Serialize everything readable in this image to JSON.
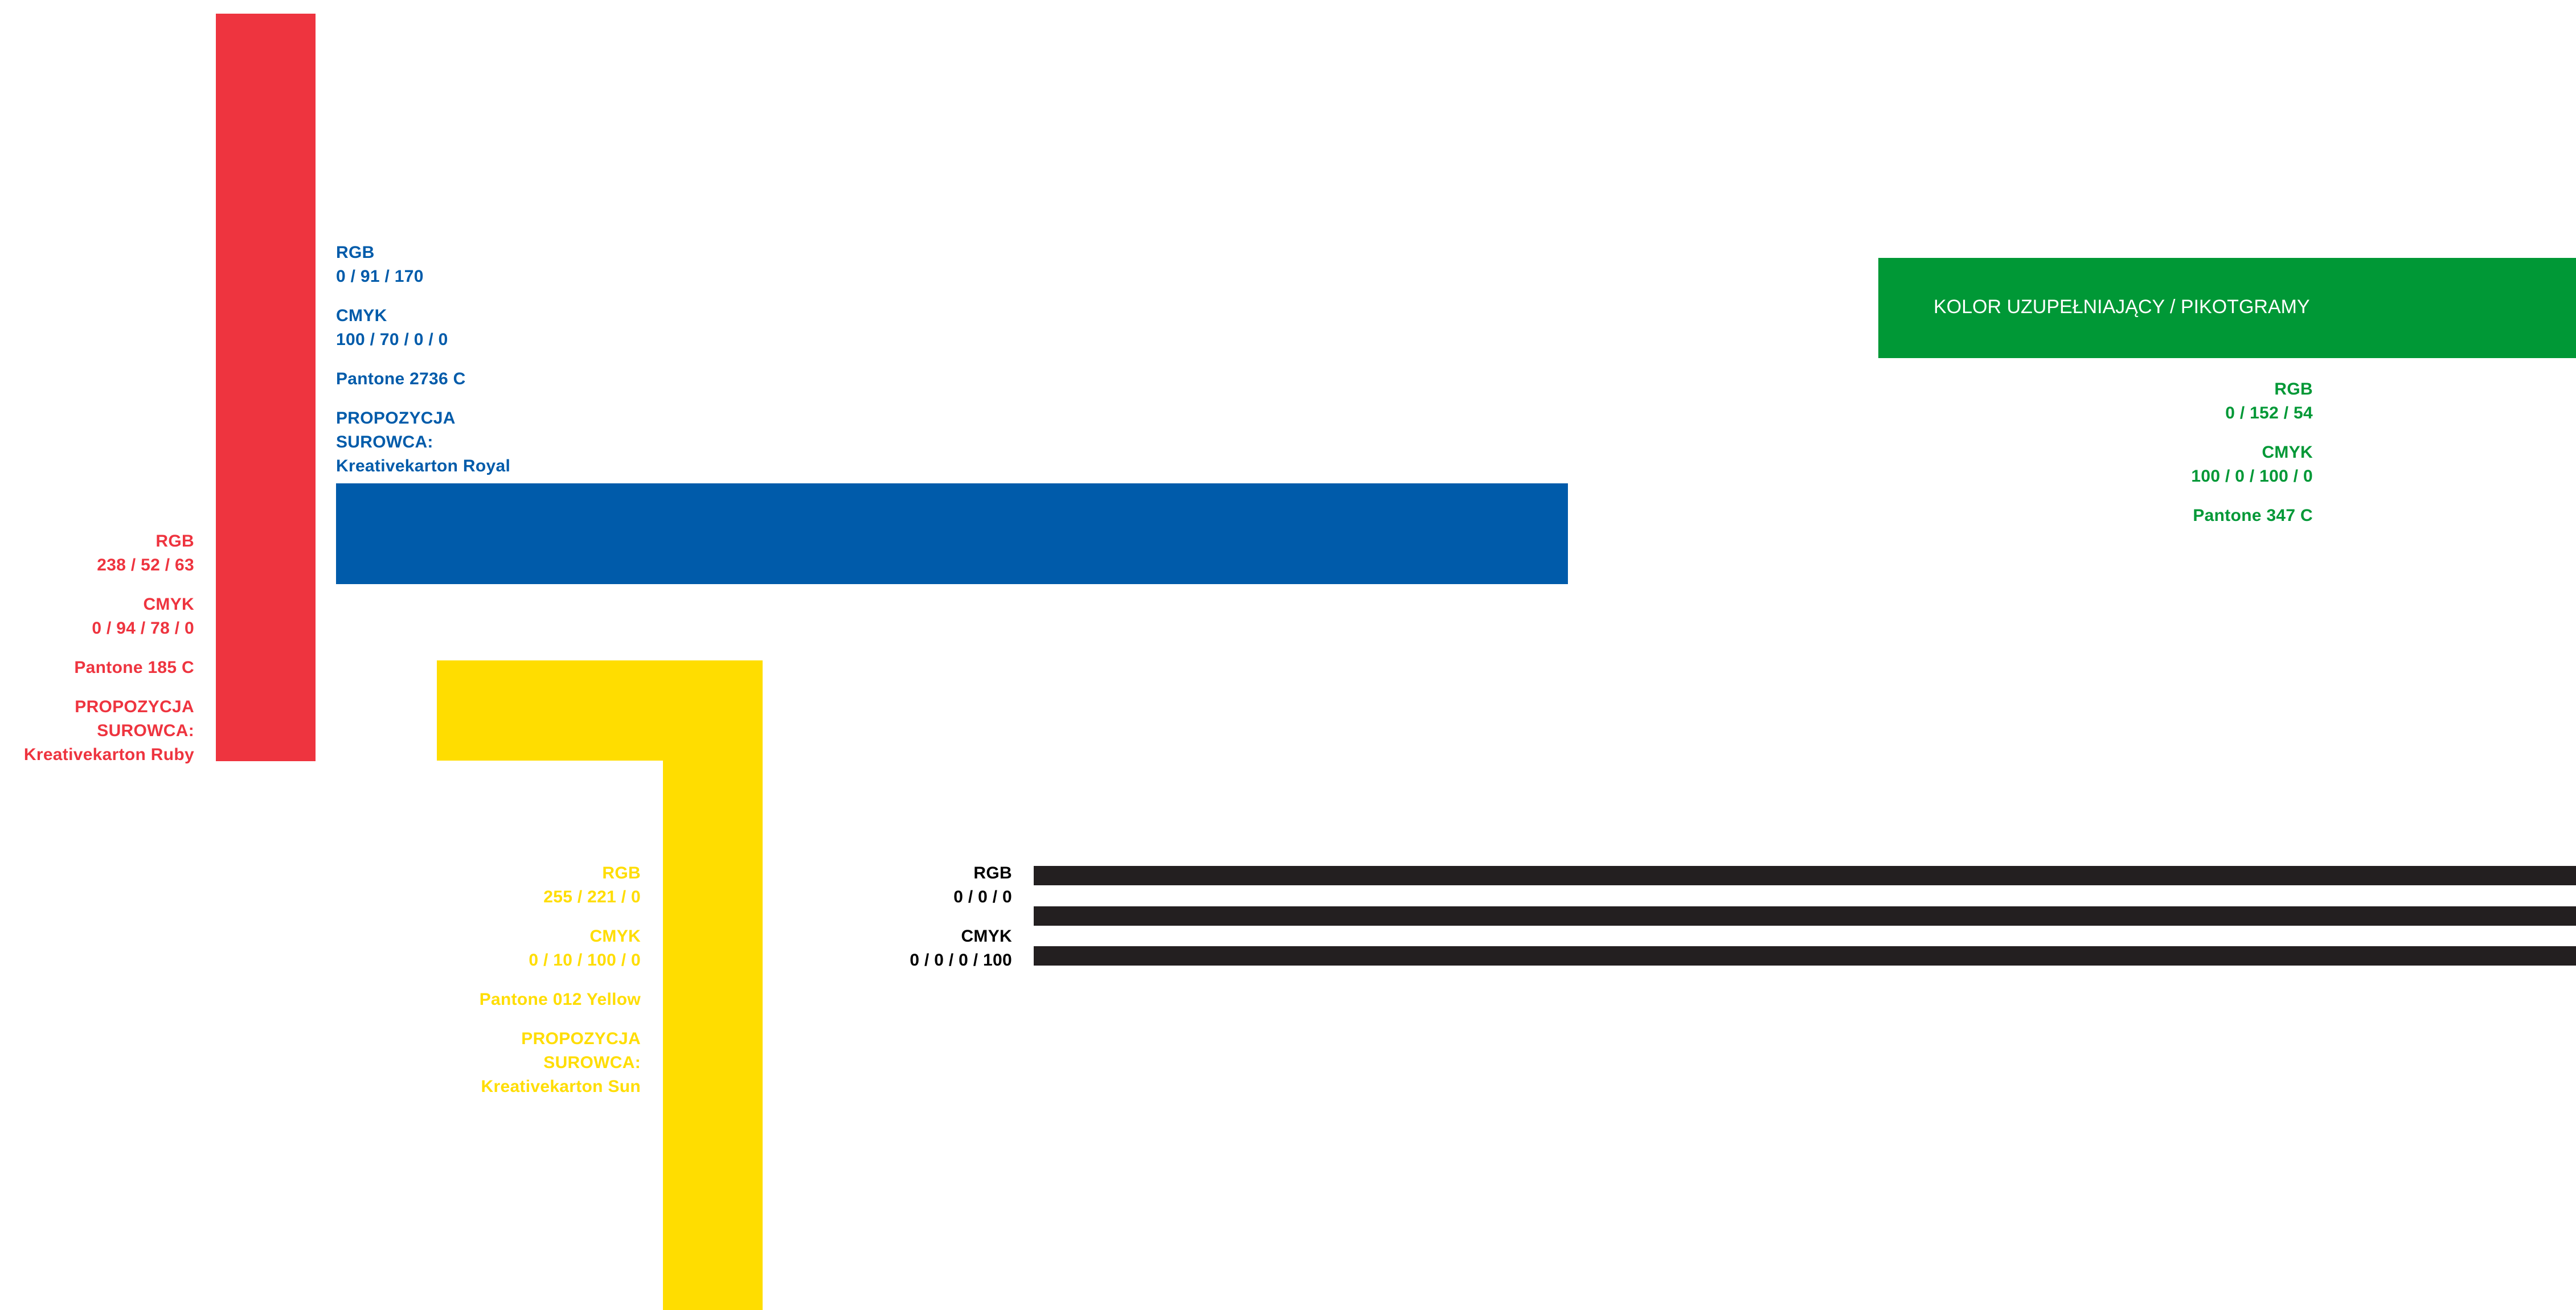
{
  "colors": {
    "red": "#ee343f",
    "blue": "#005baa",
    "yellow": "#ffdd00",
    "black": "#000000",
    "green": "#009836",
    "black_bar": "#231f20"
  },
  "red": {
    "rgb_label": "RGB",
    "rgb_value": "238 / 52 / 63",
    "cmyk_label": "CMYK",
    "cmyk_value": "0 / 94 / 78 / 0",
    "pantone": "Pantone 185 C",
    "proposal_line1": "PROPOZYCJA",
    "proposal_line2": "SUROWCA:",
    "material": "Kreativekarton Ruby"
  },
  "blue": {
    "rgb_label": "RGB",
    "rgb_value": "0 / 91 / 170",
    "cmyk_label": "CMYK",
    "cmyk_value": "100 / 70 / 0 / 0",
    "pantone": "Pantone 2736 C",
    "proposal_line1": "PROPOZYCJA",
    "proposal_line2": "SUROWCA:",
    "material": "Kreativekarton Royal"
  },
  "yellow": {
    "rgb_label": "RGB",
    "rgb_value": "255 / 221 / 0",
    "cmyk_label": "CMYK",
    "cmyk_value": "0 / 10 / 100 / 0",
    "pantone": "Pantone 012 Yellow",
    "proposal_line1": "PROPOZYCJA",
    "proposal_line2": "SUROWCA:",
    "material": "Kreativekarton Sun"
  },
  "black": {
    "rgb_label": "RGB",
    "rgb_value": "0 / 0 / 0",
    "cmyk_label": "CMYK",
    "cmyk_value": "0 / 0 / 0 / 100"
  },
  "green": {
    "title": "KOLOR UZUPEŁNIAJĄCY / PIKOTGRAMY",
    "rgb_label": "RGB",
    "rgb_value": "0 / 152 / 54",
    "cmyk_label": "CMYK",
    "cmyk_value": "100 / 0 / 100 / 0",
    "pantone": "Pantone 347 C"
  }
}
